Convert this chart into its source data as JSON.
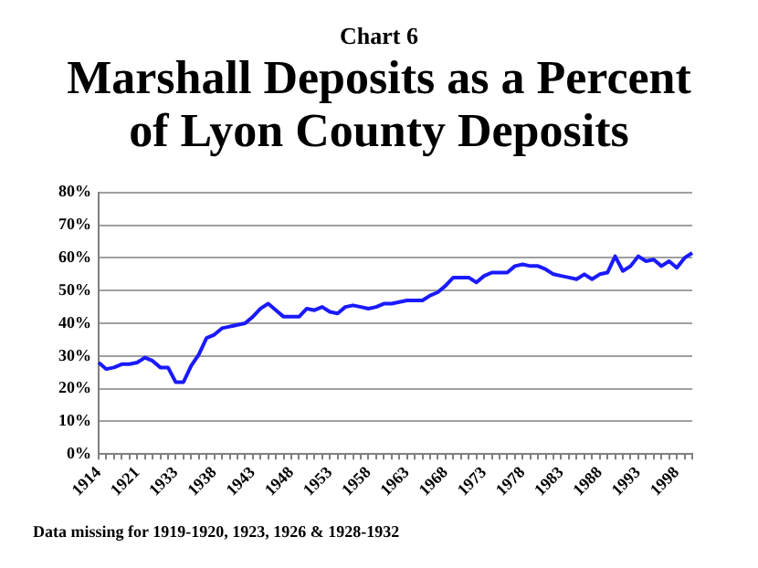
{
  "chart_data": {
    "type": "line",
    "subtitle": "Chart 6",
    "title": "Marshall Deposits as a Percent of Lyon County Deposits",
    "categories": [
      "1914",
      null,
      null,
      null,
      null,
      "1921",
      null,
      null,
      null,
      null,
      "1933",
      null,
      null,
      null,
      null,
      "1938",
      null,
      null,
      null,
      null,
      "1943",
      null,
      null,
      null,
      null,
      "1948",
      null,
      null,
      null,
      null,
      "1953",
      null,
      null,
      null,
      null,
      "1958",
      null,
      null,
      null,
      null,
      "1963",
      null,
      null,
      null,
      null,
      "1968",
      null,
      null,
      null,
      null,
      "1973",
      null,
      null,
      null,
      null,
      "1978",
      null,
      null,
      null,
      null,
      "1983",
      null,
      null,
      null,
      null,
      "1988",
      null,
      null,
      null,
      null,
      "1993",
      null,
      null,
      null,
      null,
      "1998",
      null,
      null
    ],
    "series": [
      {
        "color": "#1a1aff",
        "values": [
          28,
          26,
          26.5,
          27.5,
          27.5,
          28,
          29.5,
          28.5,
          26.5,
          26.5,
          22,
          22,
          27,
          30.5,
          35.5,
          36.5,
          38.5,
          39,
          39.5,
          40,
          42,
          44.5,
          46,
          44,
          42,
          42,
          42,
          44.5,
          44,
          45,
          43.5,
          43,
          45,
          45.5,
          45,
          44.5,
          45,
          46,
          46,
          46.5,
          47,
          47,
          47,
          48.5,
          49.5,
          51.5,
          54,
          54,
          54,
          52.5,
          54.5,
          55.5,
          55.5,
          55.5,
          57.5,
          58,
          57.5,
          57.5,
          56.5,
          55,
          54.5,
          54,
          53.5,
          55,
          53.5,
          55,
          55.5,
          60.5,
          56,
          57.5,
          60.5,
          59,
          59.5,
          57.5,
          59,
          57,
          60,
          61.5
        ]
      }
    ],
    "ylim": [
      0,
      80
    ],
    "yticks": [
      {
        "value": 0,
        "label": "0%"
      },
      {
        "value": 10,
        "label": "10%"
      },
      {
        "value": 20,
        "label": "20%"
      },
      {
        "value": 30,
        "label": "30%"
      },
      {
        "value": 40,
        "label": "40%"
      },
      {
        "value": 50,
        "label": "50%"
      },
      {
        "value": 60,
        "label": "60%"
      },
      {
        "value": 70,
        "label": "70%"
      },
      {
        "value": 80,
        "label": "80%"
      }
    ],
    "grid": "y",
    "marker": "none",
    "line_style": "solid",
    "annotations": [
      "Data missing for 1919-1920, 1923, 1926 & 1928-1932"
    ]
  }
}
